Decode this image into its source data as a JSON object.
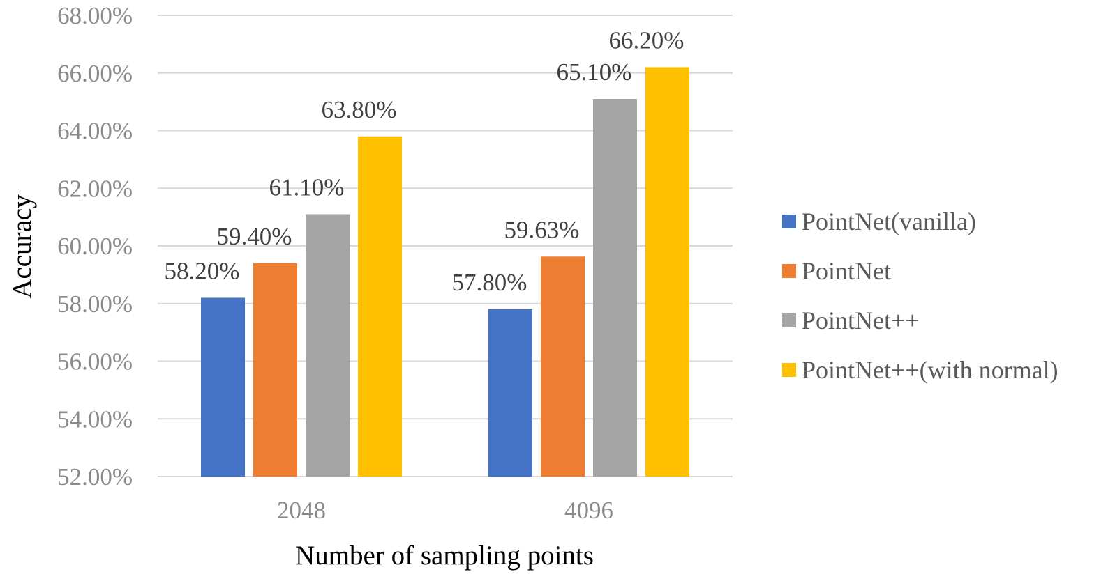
{
  "chart_data": {
    "type": "bar",
    "categories": [
      "2048",
      "4096"
    ],
    "series": [
      {
        "name": "PointNet(vanilla)",
        "values": [
          58.2,
          57.8
        ],
        "labels": [
          "58.20%",
          "57.80%"
        ],
        "color": "#4472C4"
      },
      {
        "name": "PointNet",
        "values": [
          59.4,
          59.63
        ],
        "labels": [
          "59.40%",
          "59.63%"
        ],
        "color": "#ED7D31"
      },
      {
        "name": "PointNet++",
        "values": [
          61.1,
          65.1
        ],
        "labels": [
          "61.10%",
          "65.10%"
        ],
        "color": "#A5A5A5"
      },
      {
        "name": "PointNet++(with normal)",
        "values": [
          63.8,
          66.2
        ],
        "labels": [
          "63.80%",
          "66.20%"
        ],
        "color": "#FFC000"
      }
    ],
    "title": "",
    "xlabel": "Number of sampling points",
    "ylabel": "Accuracy",
    "ylim": [
      52,
      68
    ],
    "yticks": [
      52,
      54,
      56,
      58,
      60,
      62,
      64,
      66,
      68
    ],
    "ytick_labels": [
      "52.00%",
      "54.00%",
      "56.00%",
      "58.00%",
      "60.00%",
      "62.00%",
      "64.00%",
      "66.00%",
      "68.00%"
    ],
    "grid": true,
    "legend_position": "right"
  }
}
